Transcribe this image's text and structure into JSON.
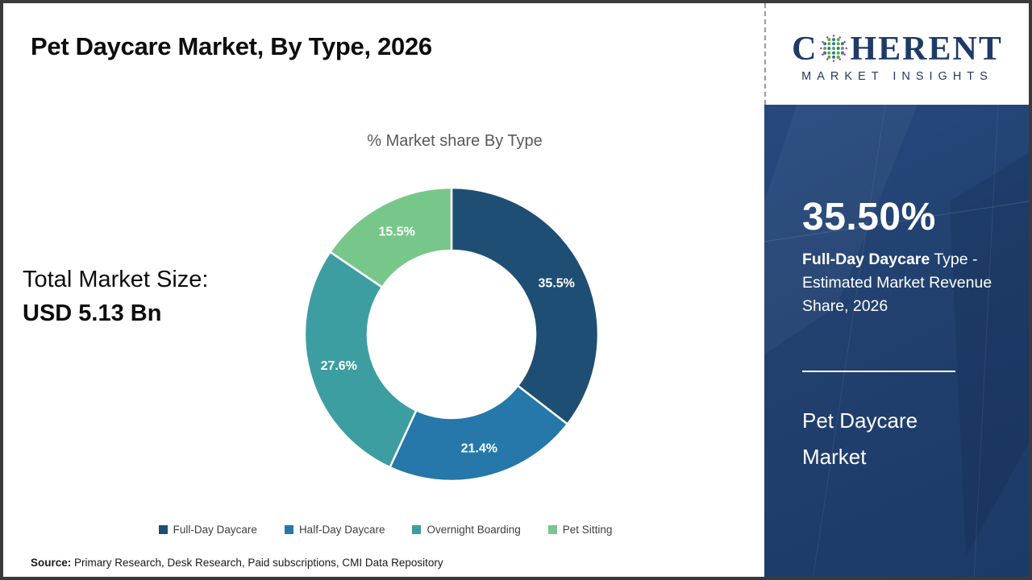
{
  "title": "Pet Daycare Market, By Type, 2026",
  "logo": {
    "word_part1": "C",
    "word_part2": "HERENT",
    "subtitle": "MARKET INSIGHTS",
    "brand_color": "#1e3a68"
  },
  "left_panel": {
    "label": "Total Market Size:",
    "value": "USD 5.13 Bn"
  },
  "chart_data": {
    "type": "pie",
    "variant": "donut",
    "title": "% Market share By Type",
    "categories": [
      "Full-Day Daycare",
      "Half-Day Daycare",
      "Overnight Boarding",
      "Pet Sitting"
    ],
    "values": [
      35.5,
      21.4,
      27.6,
      15.5
    ],
    "labels": [
      "35.5%",
      "21.4%",
      "27.6%",
      "15.5%"
    ],
    "colors": [
      "#1f4e74",
      "#2578a9",
      "#3d9ea1",
      "#78c78a"
    ],
    "start_angle_deg": 0,
    "direction": "clockwise",
    "inner_radius_ratio": 0.57,
    "legend_position": "bottom"
  },
  "sidebar": {
    "stat_value": "35.50%",
    "stat_desc_bold": "Full-Day Daycare",
    "stat_desc_rest": " Type - Estimated Market Revenue Share, 2026",
    "product_name": "Pet Daycare Market",
    "background_color": "#21406e"
  },
  "source": {
    "label": "Source:",
    "text": " Primary Research, Desk Research, Paid subscriptions, CMI Data Repository"
  }
}
